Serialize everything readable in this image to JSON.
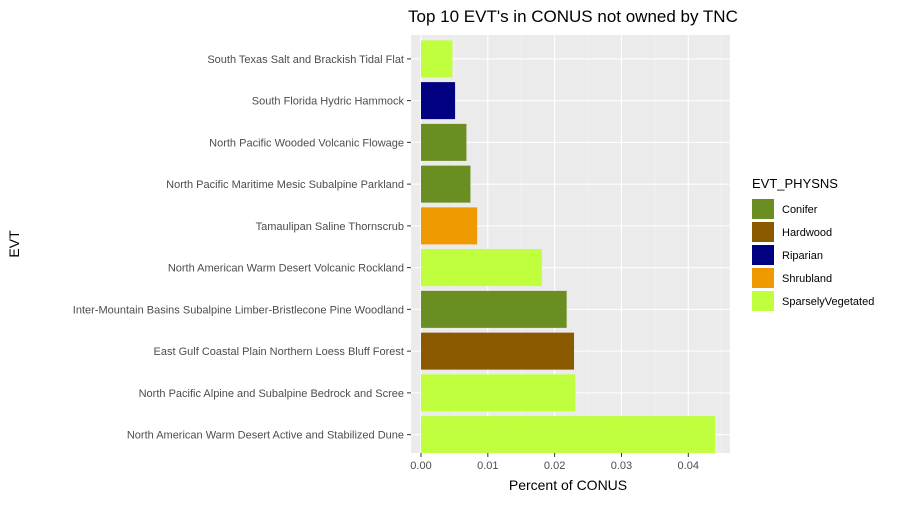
{
  "chart_data": {
    "type": "bar",
    "orientation": "horizontal",
    "title": "Top 10 EVT's in CONUS not owned by TNC",
    "xlabel": "Percent of CONUS",
    "ylabel": "EVT",
    "xlim": [
      0,
      0.0445
    ],
    "xticks": [
      0.0,
      0.01,
      0.02,
      0.03,
      0.04
    ],
    "xtick_labels": [
      "0.00",
      "0.01",
      "0.02",
      "0.03",
      "0.04"
    ],
    "grid": true,
    "legend": {
      "title": "EVT_PHYSNS",
      "position": "right",
      "entries": [
        {
          "label": "Conifer",
          "color": "#6B8E23"
        },
        {
          "label": "Hardwood",
          "color": "#8B5A00"
        },
        {
          "label": "Riparian",
          "color": "#000080"
        },
        {
          "label": "Shrubland",
          "color": "#EE9A00"
        },
        {
          "label": "SparselyVegetated",
          "color": "#C0FF3E"
        }
      ]
    },
    "bars": [
      {
        "label": "South Texas Salt and Brackish Tidal Flat",
        "value": 0.0047,
        "group": "SparselyVegetated"
      },
      {
        "label": "South Florida Hydric Hammock",
        "value": 0.0051,
        "group": "Riparian"
      },
      {
        "label": "North Pacific Wooded Volcanic Flowage",
        "value": 0.0068,
        "group": "Conifer"
      },
      {
        "label": "North Pacific Maritime Mesic Subalpine Parkland",
        "value": 0.0074,
        "group": "Conifer"
      },
      {
        "label": "Tamaulipan Saline Thornscrub",
        "value": 0.0084,
        "group": "Shrubland"
      },
      {
        "label": "North American Warm Desert Volcanic Rockland",
        "value": 0.0181,
        "group": "SparselyVegetated"
      },
      {
        "label": "Inter-Mountain Basins Subalpine Limber-Bristlecone Pine Woodland",
        "value": 0.0218,
        "group": "Conifer"
      },
      {
        "label": "East Gulf Coastal Plain Northern Loess Bluff Forest",
        "value": 0.0229,
        "group": "Hardwood"
      },
      {
        "label": "North Pacific Alpine and Subalpine Bedrock and Scree",
        "value": 0.0231,
        "group": "SparselyVegetated"
      },
      {
        "label": "North American Warm Desert Active and Stabilized Dune",
        "value": 0.044,
        "group": "SparselyVegetated"
      }
    ]
  }
}
